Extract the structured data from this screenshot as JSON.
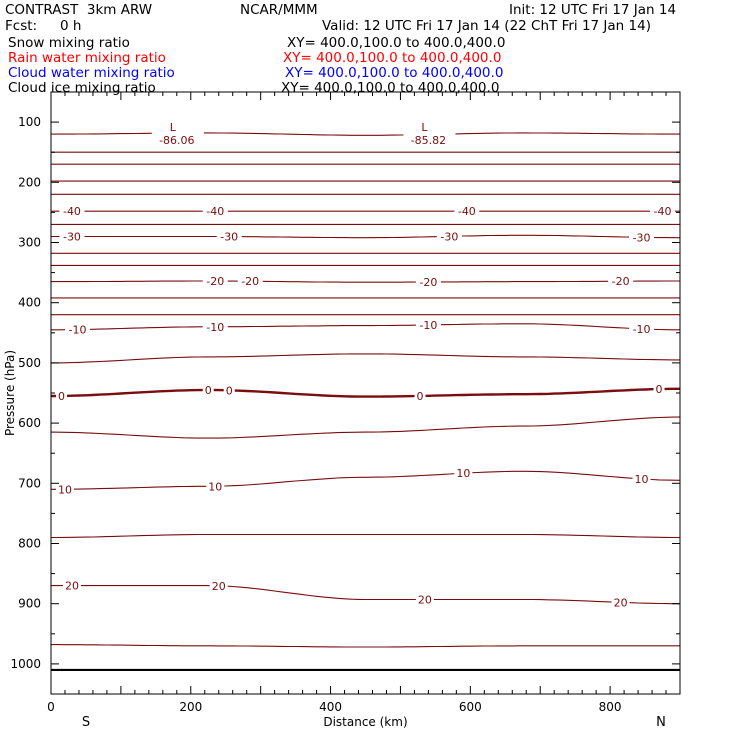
{
  "header": {
    "model": "CONTRAST  3km ARW",
    "org": "NCAR/MMM",
    "init": "Init: 12 UTC Fri 17 Jan 14",
    "fcst_label": "Fcst:",
    "fcst_value": "0 h",
    "valid": "Valid: 12 UTC Fri 17 Jan 14 (22 ChT Fri 17 Jan 14)"
  },
  "fields": [
    {
      "name": "Snow mixing ratio",
      "xy": "XY= 400.0,100.0 to 400.0,400.0",
      "color": "#000000"
    },
    {
      "name": "Rain water mixing ratio",
      "xy": "XY= 400.0,100.0 to 400.0,400.0",
      "color": "#ff0000"
    },
    {
      "name": "Cloud water mixing ratio",
      "xy": "XY= 400.0,100.0 to 400.0,400.0",
      "color": "#0000ff"
    },
    {
      "name": "Cloud ice mixing ratio",
      "xy": "XY= 400.0,100.0 to 400.0,400.0",
      "color": "#000000"
    }
  ],
  "colors": {
    "contour": "#7a0d0d",
    "ground": "#000000",
    "axis": "#000000"
  },
  "chart_data": {
    "type": "contour",
    "xlabel": "Distance (km)",
    "ylabel": "Pressure (hPa)",
    "x_ticks": [
      0,
      200,
      400,
      600,
      800
    ],
    "y_ticks": [
      100,
      200,
      300,
      400,
      500,
      600,
      700,
      800,
      900,
      1000
    ],
    "xlim": [
      0,
      900
    ],
    "ylim": [
      50,
      1050
    ],
    "y_reversed": true,
    "end_labels": {
      "left": "S",
      "right": "N"
    },
    "lows": [
      {
        "symbol": "L",
        "value": "-86.06",
        "x": 180,
        "p": 105
      },
      {
        "symbol": "L",
        "value": "-85.82",
        "x": 540,
        "p": 105
      }
    ],
    "contours": [
      {
        "p": [
          120,
          118,
          122,
          118,
          120
        ]
      },
      {
        "p": [
          150,
          150,
          150,
          150,
          150
        ]
      },
      {
        "p": [
          170,
          170,
          170,
          170,
          170
        ]
      },
      {
        "p": [
          198,
          198,
          198,
          198,
          198
        ]
      },
      {
        "p": [
          220,
          220,
          220,
          220,
          220
        ]
      },
      {
        "level": "-40",
        "p": [
          248,
          248,
          248,
          248,
          248
        ],
        "labels": [
          {
            "x": 30,
            "text": "-40"
          },
          {
            "x": 235,
            "text": "-40"
          },
          {
            "x": 595,
            "text": "-40"
          },
          {
            "x": 875,
            "text": "-40"
          }
        ]
      },
      {
        "p": [
          270,
          270,
          270,
          270,
          270
        ]
      },
      {
        "level": "-30",
        "p": [
          290,
          290,
          292,
          288,
          292
        ],
        "labels": [
          {
            "x": 30,
            "text": "-30"
          },
          {
            "x": 255,
            "text": "-30"
          },
          {
            "x": 570,
            "text": "-30"
          },
          {
            "x": 845,
            "text": "-30"
          }
        ]
      },
      {
        "p": [
          318,
          318,
          318,
          318,
          318
        ]
      },
      {
        "p": [
          338,
          338,
          338,
          338,
          338
        ]
      },
      {
        "level": "-20",
        "p": [
          365,
          364,
          366,
          365,
          364
        ],
        "labels": [
          {
            "x": 235,
            "text": "-20"
          },
          {
            "x": 285,
            "text": "-20"
          },
          {
            "x": 540,
            "text": "-20"
          },
          {
            "x": 815,
            "text": "-20"
          }
        ]
      },
      {
        "p": [
          392,
          392,
          392,
          392,
          392
        ]
      },
      {
        "p": [
          420,
          420,
          420,
          420,
          420
        ]
      },
      {
        "level": "-10",
        "p": [
          445,
          440,
          438,
          435,
          445
        ],
        "labels": [
          {
            "x": 38,
            "text": "-10"
          },
          {
            "x": 235,
            "text": "-10"
          },
          {
            "x": 540,
            "text": "-10"
          },
          {
            "x": 845,
            "text": "-10"
          }
        ]
      },
      {
        "p": [
          500,
          490,
          485,
          490,
          495
        ]
      },
      {
        "level": "0",
        "p": [
          555,
          545,
          556,
          552,
          543
        ],
        "bold": true,
        "labels": [
          {
            "x": 15,
            "text": "0"
          },
          {
            "x": 225,
            "text": "0"
          },
          {
            "x": 255,
            "text": "0"
          },
          {
            "x": 528,
            "text": "0"
          },
          {
            "x": 870,
            "text": "0"
          }
        ]
      },
      {
        "p": [
          615,
          625,
          615,
          605,
          590
        ]
      },
      {
        "level": "10",
        "p": [
          710,
          705,
          690,
          680,
          695
        ],
        "labels": [
          {
            "x": 20,
            "text": "10"
          },
          {
            "x": 235,
            "text": "10"
          },
          {
            "x": 590,
            "text": "10"
          },
          {
            "x": 845,
            "text": "10"
          }
        ]
      },
      {
        "p": [
          790,
          785,
          785,
          785,
          790
        ]
      },
      {
        "level": "20",
        "p": [
          870,
          870,
          893,
          893,
          900
        ],
        "labels": [
          {
            "x": 30,
            "text": "20"
          },
          {
            "x": 240,
            "text": "20"
          },
          {
            "x": 535,
            "text": "20"
          },
          {
            "x": 815,
            "text": "20"
          }
        ]
      },
      {
        "p": [
          968,
          970,
          972,
          970,
          970
        ]
      }
    ],
    "ground_p": 1010
  }
}
